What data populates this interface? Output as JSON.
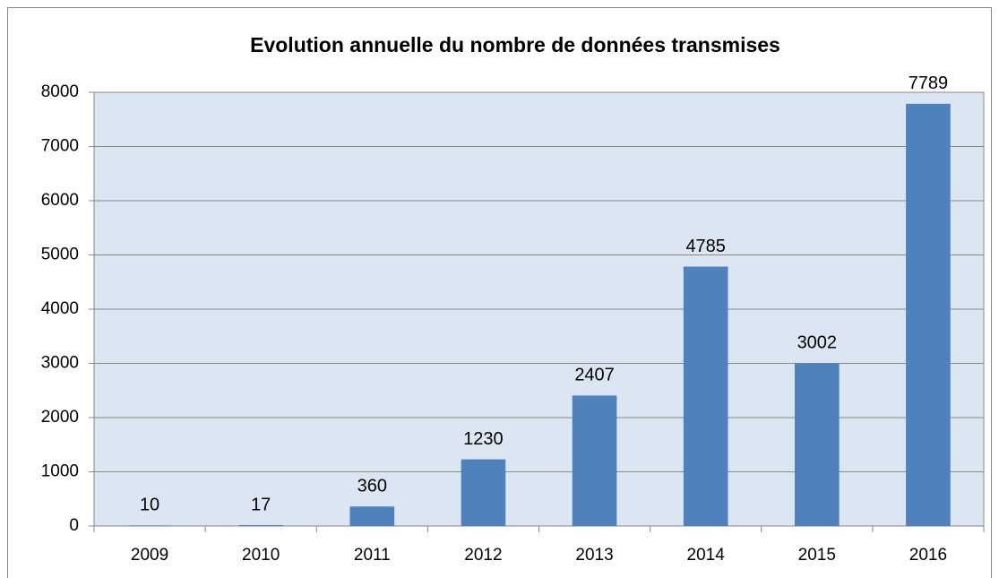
{
  "chart_data": {
    "type": "bar",
    "title": "Evolution annuelle du nombre de données transmises",
    "categories": [
      "2009",
      "2010",
      "2011",
      "2012",
      "2013",
      "2014",
      "2015",
      "2016"
    ],
    "values": [
      10,
      17,
      360,
      1230,
      2407,
      4785,
      3002,
      7789
    ],
    "color": "#4f81bd",
    "ylim": [
      0,
      8000
    ],
    "yticks": [
      0,
      1000,
      2000,
      3000,
      4000,
      5000,
      6000,
      7000,
      8000
    ],
    "grid": true
  }
}
